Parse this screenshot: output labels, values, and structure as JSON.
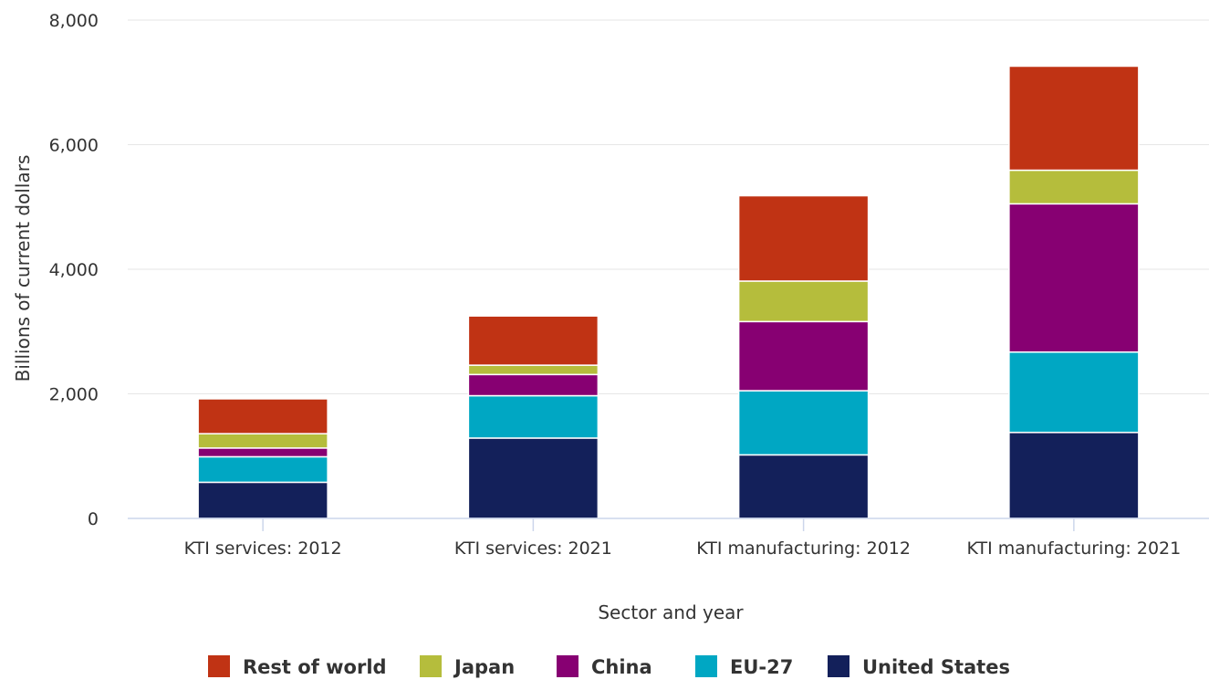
{
  "chart_data": {
    "type": "bar",
    "stacked": true,
    "categories": [
      "KTI services: 2012",
      "KTI services: 2021",
      "KTI manufacturing: 2012",
      "KTI manufacturing: 2021"
    ],
    "series": [
      {
        "name": "United States",
        "color": "#13205a",
        "values": [
          580,
          1290,
          1020,
          1380
        ]
      },
      {
        "name": "EU-27",
        "color": "#00a7c3",
        "values": [
          410,
          680,
          1030,
          1290
        ]
      },
      {
        "name": "China",
        "color": "#870072",
        "values": [
          140,
          340,
          1110,
          2380
        ]
      },
      {
        "name": "Japan",
        "color": "#b5bd3c",
        "values": [
          230,
          150,
          650,
          540
        ]
      },
      {
        "name": "Rest of world",
        "color": "#c03314",
        "values": [
          560,
          790,
          1370,
          1670
        ]
      }
    ],
    "legend_order": [
      "Rest of world",
      "Japan",
      "China",
      "EU-27",
      "United States"
    ],
    "xlabel": "Sector and year",
    "ylabel": "Billions of current dollars",
    "ylim": [
      0,
      8000
    ],
    "yticks": [
      0,
      2000,
      4000,
      6000,
      8000
    ],
    "ytick_labels": [
      "0",
      "2,000",
      "4,000",
      "6,000",
      "8,000"
    ],
    "grid": true,
    "legend_position": "bottom"
  }
}
